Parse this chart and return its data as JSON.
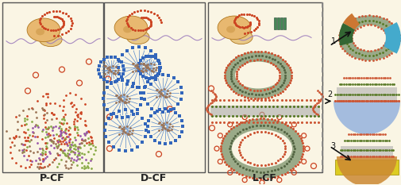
{
  "background_color": "#faf5e4",
  "border_color": "#555555",
  "labels": [
    "P-CF",
    "D-CF",
    "L-CF"
  ],
  "label_fontsize": 9,
  "fig_width": 5.05,
  "fig_height": 2.33,
  "dpi": 100,
  "colors": {
    "ribosome_big": "#e8b870",
    "ribosome_small": "#e8c888",
    "ribosome_edge": "#b07820",
    "mrna_line": "#9977bb",
    "red_dot": "#cc4422",
    "peptide_red": "#cc4422",
    "peptide_brown": "#9b7355",
    "peptide_green": "#88aa44",
    "peptide_purple": "#9955aa",
    "detergent_line": "#5588cc",
    "detergent_dot": "#3366bb",
    "membrane_red": "#cc5533",
    "membrane_green": "#557722",
    "membrane_gray": "#aaaaaa",
    "nanodisc_outer_red": "#cc5533",
    "nanodisc_inner_dark": "#556644",
    "nanodisc_center": "#888877",
    "nanodisc_fill": "#9aaa88",
    "sc1_outer": "#cc5533",
    "sc1_green": "#557722",
    "sc1_gray": "#9aaa88",
    "sc1_cyan": "#44aacc",
    "sc1_dark_green": "#336633",
    "sc1_orange": "#cc7733",
    "sc2_blue": "#88aadd",
    "sc2_outer": "#cc5533",
    "sc2_green": "#557722",
    "sc2_gray": "#aaaaaa",
    "sc3_yellow": "#ddcc22",
    "sc3_orange": "#cc8833",
    "sc3_outer": "#cc5533",
    "sc3_green": "#557722",
    "arrow_color": "#111111"
  }
}
